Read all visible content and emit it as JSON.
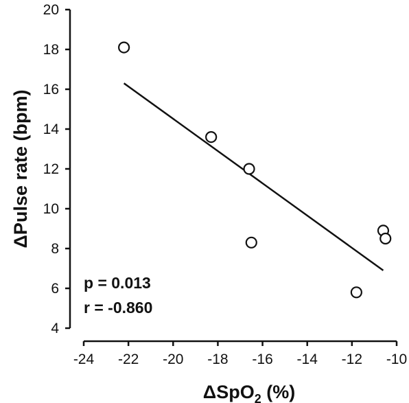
{
  "chart_data": {
    "type": "scatter",
    "xlabel": "ΔSpO",
    "xlabel_sub": "2",
    "xlabel_suffix": " (%)",
    "ylabel": "ΔPulse rate (bpm)",
    "xlim": [
      -24,
      -10
    ],
    "ylim": [
      4,
      20
    ],
    "x_ticks": [
      -24,
      -22,
      -20,
      -18,
      -16,
      -14,
      -12,
      -10
    ],
    "y_ticks": [
      4,
      6,
      8,
      10,
      12,
      14,
      16,
      18,
      20
    ],
    "grid": false,
    "marker": "open-circle",
    "points": [
      {
        "x": -22.2,
        "y": 18.1
      },
      {
        "x": -18.3,
        "y": 13.6
      },
      {
        "x": -16.6,
        "y": 12.0
      },
      {
        "x": -16.5,
        "y": 8.3
      },
      {
        "x": -11.8,
        "y": 5.8
      },
      {
        "x": -10.6,
        "y": 8.9
      },
      {
        "x": -10.5,
        "y": 8.5
      }
    ],
    "trend_line": {
      "x": [
        -22.2,
        -10.6
      ],
      "y": [
        16.3,
        6.9
      ]
    },
    "annotations": [
      "p = 0.013",
      "r = -0.860"
    ]
  }
}
